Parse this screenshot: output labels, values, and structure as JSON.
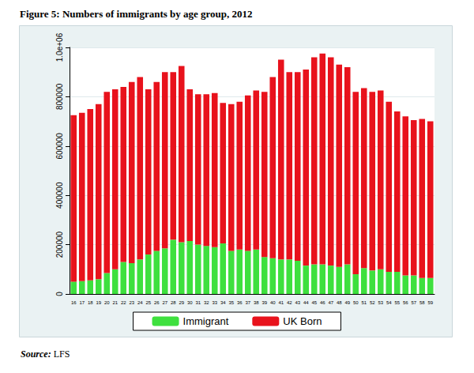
{
  "chart_data": {
    "type": "bar",
    "title": "Figure 5: Numbers of immigrants by age group, 2012",
    "annotations": [
      "Source: LFS"
    ],
    "categories": [
      "16",
      "17",
      "18",
      "19",
      "20",
      "21",
      "22",
      "23",
      "24",
      "25",
      "26",
      "27",
      "28",
      "29",
      "30",
      "31",
      "32",
      "33",
      "34",
      "35",
      "36",
      "37",
      "38",
      "39",
      "40",
      "41",
      "42",
      "43",
      "44",
      "45",
      "46",
      "47",
      "48",
      "49",
      "50",
      "51",
      "52",
      "53",
      "54",
      "55",
      "56",
      "57",
      "58",
      "59"
    ],
    "series": [
      {
        "name": "Immigrant",
        "color": "#3ee03e",
        "values": [
          50000,
          52000,
          55000,
          60000,
          85000,
          100000,
          130000,
          125000,
          140000,
          160000,
          175000,
          185000,
          220000,
          210000,
          215000,
          200000,
          195000,
          190000,
          205000,
          175000,
          180000,
          175000,
          180000,
          150000,
          145000,
          140000,
          140000,
          135000,
          115000,
          120000,
          120000,
          115000,
          110000,
          120000,
          80000,
          105000,
          95000,
          100000,
          90000,
          90000,
          75000,
          75000,
          65000,
          65000
        ]
      },
      {
        "name": "UK Born",
        "color": "#e8121c",
        "values": [
          675000,
          683000,
          695000,
          710000,
          735000,
          730000,
          710000,
          735000,
          740000,
          670000,
          685000,
          715000,
          680000,
          715000,
          615000,
          610000,
          615000,
          625000,
          570000,
          595000,
          600000,
          630000,
          645000,
          670000,
          735000,
          810000,
          760000,
          765000,
          795000,
          840000,
          855000,
          845000,
          820000,
          800000,
          740000,
          730000,
          725000,
          725000,
          690000,
          650000,
          645000,
          630000,
          645000,
          635000
        ]
      }
    ],
    "stacked": true,
    "ylim": [
      0,
      1000000
    ],
    "yticks": [
      0,
      200000,
      400000,
      600000,
      800000,
      {
        "value": 1000000,
        "label": "1.0e+06"
      }
    ],
    "grid": true,
    "legend": "bottom"
  }
}
